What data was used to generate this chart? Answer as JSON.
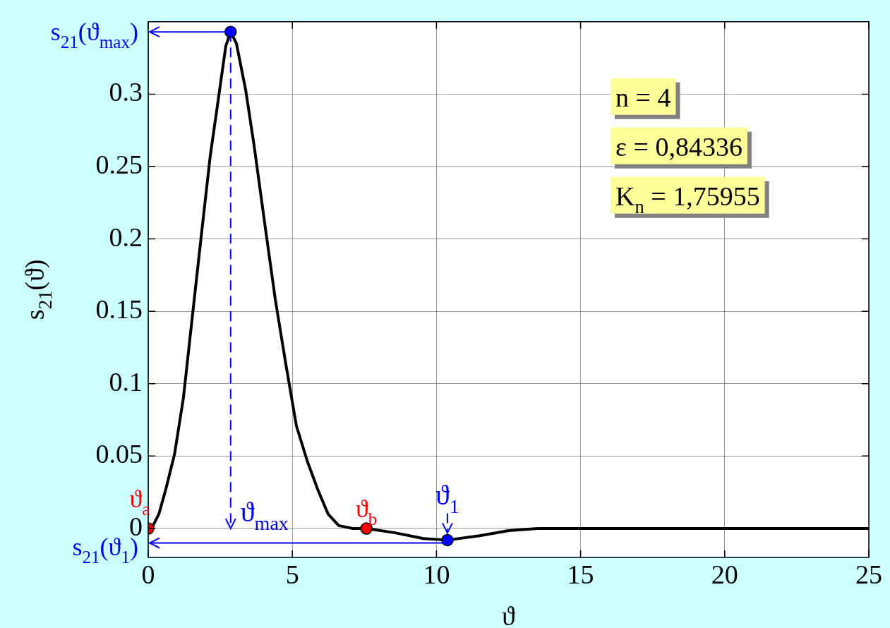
{
  "chart_data": {
    "type": "line",
    "xlabel": "ϑ",
    "ylabel": "s$_{21}$(ϑ)",
    "xlim": [
      0,
      25
    ],
    "xticks": [
      0,
      5,
      10,
      15,
      20,
      25
    ],
    "ylim": [
      -0.02,
      0.35
    ],
    "yticks": [
      0,
      0.05,
      0.1,
      0.15,
      0.2,
      0.25,
      0.3
    ],
    "grid": true,
    "ref_lines": [
      {
        "axis": "x",
        "value": 2.86,
        "color": "#0000ff",
        "line_style": "dashed"
      },
      {
        "axis": "y",
        "value": 0.343,
        "color": "#0000ff",
        "line_style": "solid"
      },
      {
        "axis": "y",
        "value": -0.01,
        "color": "#0000ff",
        "line_style": "solid"
      }
    ],
    "series": [
      {
        "color": "#000000",
        "marker": "none",
        "x": [
          0,
          0.12,
          0.37,
          0.61,
          0.91,
          1.22,
          1.54,
          1.84,
          2.15,
          2.45,
          2.69,
          2.86,
          3.06,
          3.38,
          3.67,
          4.04,
          4.41,
          4.77,
          5.14,
          5.51,
          5.88,
          6.24,
          6.61,
          7.1,
          7.57,
          8.57,
          9.55,
          10.38,
          11.5,
          12.5,
          13.5,
          16,
          20,
          25
        ],
        "values": [
          0,
          0,
          0.01,
          0.027,
          0.051,
          0.09,
          0.148,
          0.202,
          0.257,
          0.299,
          0.333,
          0.343,
          0.335,
          0.303,
          0.265,
          0.211,
          0.158,
          0.114,
          0.071,
          0.047,
          0.027,
          0.01,
          0.002,
          0,
          0,
          -0.003,
          -0.007,
          -0.008,
          -0.005,
          -0.0015,
          0,
          0,
          0,
          0
        ]
      },
      {
        "type": "scatter",
        "color": "#ff0000",
        "marker": "circle",
        "x": [
          0,
          7.57
        ],
        "values": [
          0,
          0
        ]
      },
      {
        "type": "scatter",
        "color": "#0000ff",
        "marker": "circle",
        "x": [
          2.86,
          10.38
        ],
        "values": [
          0.343,
          -0.008
        ]
      }
    ],
    "annotations": [
      "s$_{21}$(ϑ$_{max}$)",
      "ϑ$_{max}$",
      {
        "text": "ϑ$_{a}$",
        "x": 0,
        "y": 0
      },
      {
        "text": "ϑ$_{b}$",
        "x": 7.57,
        "y": 0
      },
      {
        "text": "ϑ$_{1}$",
        "x": 10.38,
        "y": -0.008
      },
      "s$_{21}$(ϑ$_{1}$)",
      "n = 4",
      "ε = 0,84336",
      "K$_{n}$ = 1,75955"
    ]
  }
}
